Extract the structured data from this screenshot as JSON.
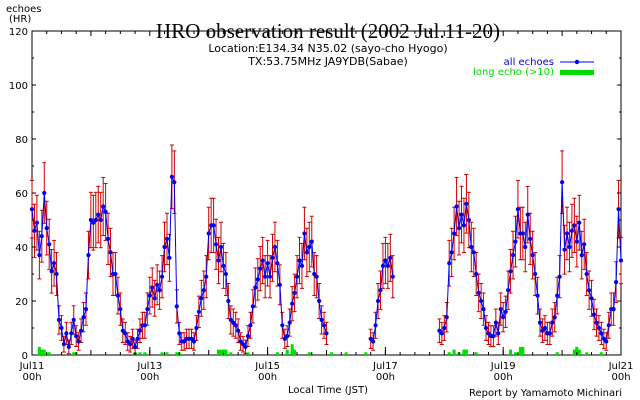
{
  "chart_data": {
    "type": "line",
    "title": "HRO observation result (2002 Jul.11-20)",
    "subtitle_location": "Location:E134.34 N35.02 (sayo-cho Hyogo)",
    "subtitle_tx": "TX:53.75MHz JA9YDB(Sabae)",
    "ylabel_line1": "echoes",
    "ylabel_line2": "(HR)",
    "xlabel": "Local Time (JST)",
    "credit": "Report by Yamamoto Michinari",
    "ylim": [
      0,
      120
    ],
    "yticks": [
      0,
      20,
      40,
      60,
      80,
      100,
      120
    ],
    "xlim_hours": [
      0,
      240
    ],
    "xticks": [
      {
        "label1": "Jul11",
        "label2": "00h",
        "hour": 0
      },
      {
        "label1": "Jul13",
        "label2": "00h",
        "hour": 48
      },
      {
        "label1": "Jul15",
        "label2": "00h",
        "hour": 96
      },
      {
        "label1": "Jul17",
        "label2": "00h",
        "hour": 144
      },
      {
        "label1": "Jul19",
        "label2": "00h",
        "hour": 192
      },
      {
        "label1": "Jul21",
        "label2": "00h",
        "hour": 240
      }
    ],
    "legend_placement": "top-right",
    "series": [
      {
        "name": "all echoes",
        "color": "#0000ee",
        "errorbar_color": "#cc0000",
        "segments": [
          {
            "start_hour": 0,
            "values": [
              54,
              46,
              49,
              37,
              44,
              60,
              47,
              41,
              31,
              34,
              30,
              13,
              10,
              4,
              8,
              3,
              8,
              13,
              7,
              5,
              9,
              14,
              17,
              37,
              50,
              49,
              50,
              52,
              50,
              55,
              53,
              43,
              38,
              30,
              30,
              22,
              17,
              9,
              8,
              5,
              4,
              6,
              3,
              6,
              9,
              11,
              11,
              17,
              22,
              25,
              21,
              26,
              24,
              29,
              40,
              43,
              36,
              66,
              64,
              18,
              8,
              5,
              5,
              6,
              6,
              6,
              5,
              10,
              16,
              21,
              24,
              29,
              45,
              48,
              48,
              41,
              35,
              40,
              33,
              30,
              20,
              13,
              12,
              11,
              9,
              5,
              4,
              3,
              7,
              11,
              18,
              25,
              28,
              32,
              35,
              29,
              34,
              29,
              36,
              40,
              34,
              26,
              11,
              6,
              7,
              12,
              19,
              23,
              29,
              35,
              33,
              45,
              38,
              40,
              42,
              30,
              29,
              20,
              13,
              11,
              8
            ]
          },
          {
            "start_hour": 138,
            "values": [
              6,
              5,
              11,
              20,
              24,
              33,
              35,
              33,
              36,
              29
            ]
          },
          {
            "start_hour": 166,
            "values": [
              9,
              8,
              10,
              14,
              34,
              38,
              45,
              55,
              47,
              52,
              48,
              56,
              50,
              40,
              38,
              30,
              23,
              20,
              17,
              10,
              8,
              7,
              7,
              12,
              8,
              17,
              14,
              16,
              24,
              31,
              37,
              42,
              54,
              45,
              45,
              40,
              52,
              43,
              37,
              30,
              22,
              12,
              9,
              10,
              8,
              8,
              12,
              14,
              22,
              29,
              64,
              39,
              45,
              40,
              46,
              48,
              42,
              49,
              37,
              41,
              30,
              24,
              21,
              15,
              12,
              10,
              8,
              6,
              5,
              11,
              17,
              17,
              27,
              54,
              35
            ]
          }
        ]
      },
      {
        "name": "long echo (>10)",
        "color": "#00dd00",
        "values_note": "small bars near baseline",
        "bars": [
          {
            "hour": 3,
            "value": 3
          },
          {
            "hour": 4,
            "value": 2
          },
          {
            "hour": 5,
            "value": 2
          },
          {
            "hour": 7,
            "value": 1
          },
          {
            "hour": 17,
            "value": 1
          },
          {
            "hour": 18,
            "value": 1
          },
          {
            "hour": 42,
            "value": 1
          },
          {
            "hour": 44,
            "value": 1
          },
          {
            "hour": 46,
            "value": 1
          },
          {
            "hour": 53,
            "value": 1
          },
          {
            "hour": 55,
            "value": 1
          },
          {
            "hour": 59,
            "value": 1
          },
          {
            "hour": 60,
            "value": 1
          },
          {
            "hour": 76,
            "value": 2
          },
          {
            "hour": 77,
            "value": 2
          },
          {
            "hour": 78,
            "value": 2
          },
          {
            "hour": 79,
            "value": 2
          },
          {
            "hour": 81,
            "value": 1
          },
          {
            "hour": 88,
            "value": 1
          },
          {
            "hour": 100,
            "value": 1
          },
          {
            "hour": 104,
            "value": 2
          },
          {
            "hour": 106,
            "value": 4
          },
          {
            "hour": 107,
            "value": 2
          },
          {
            "hour": 113,
            "value": 1
          },
          {
            "hour": 122,
            "value": 1
          },
          {
            "hour": 128,
            "value": 1
          },
          {
            "hour": 136,
            "value": 1
          },
          {
            "hour": 170,
            "value": 1
          },
          {
            "hour": 172,
            "value": 2
          },
          {
            "hour": 174,
            "value": 1
          },
          {
            "hour": 176,
            "value": 2
          },
          {
            "hour": 177,
            "value": 2
          },
          {
            "hour": 181,
            "value": 1
          },
          {
            "hour": 195,
            "value": 2
          },
          {
            "hour": 197,
            "value": 1
          },
          {
            "hour": 199,
            "value": 3
          },
          {
            "hour": 200,
            "value": 3
          },
          {
            "hour": 214,
            "value": 1
          },
          {
            "hour": 221,
            "value": 2
          },
          {
            "hour": 222,
            "value": 3
          },
          {
            "hour": 223,
            "value": 2
          },
          {
            "hour": 226,
            "value": 1
          },
          {
            "hour": 232,
            "value": 1
          }
        ]
      }
    ]
  }
}
